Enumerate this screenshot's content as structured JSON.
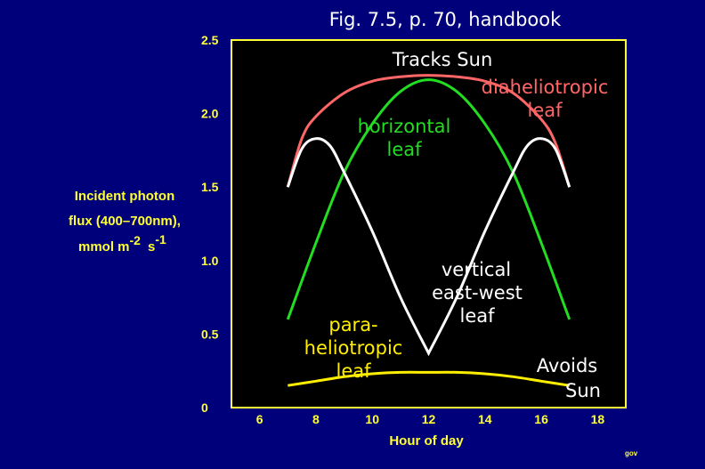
{
  "chart_data": {
    "type": "line",
    "title": "Fig. 7.5, p. 70, handbook",
    "xlabel": "Hour of day",
    "ylabel_lines": [
      "Incident photon",
      "flux (400–700nm),",
      "mmol m",
      "-2",
      "s",
      "-1"
    ],
    "xlim": [
      5,
      19
    ],
    "ylim": [
      0,
      2.5
    ],
    "xticks": [
      6,
      8,
      10,
      12,
      14,
      16,
      18
    ],
    "xtick_labels": [
      "6",
      "8",
      "10",
      "12",
      "14",
      "16",
      "18"
    ],
    "yticks": [
      0,
      0.5,
      1.0,
      1.5,
      2.0,
      2.5
    ],
    "ytick_labels": [
      "0",
      "0.5",
      "1.0",
      "1.5",
      "2.0",
      "2.5"
    ],
    "grid": false,
    "series": [
      {
        "key": "diaheliotropic",
        "color": "#ff6666",
        "x": [
          7,
          7.5,
          8,
          9,
          10,
          11,
          12,
          13,
          14,
          15,
          16,
          16.5,
          17
        ],
        "y": [
          1.5,
          1.83,
          1.98,
          2.14,
          2.22,
          2.25,
          2.26,
          2.25,
          2.22,
          2.14,
          1.96,
          1.8,
          1.5
        ]
      },
      {
        "key": "horizontal",
        "color": "#22dd22",
        "x": [
          7,
          8,
          9,
          10,
          11,
          12,
          13,
          14,
          15,
          16,
          17
        ],
        "y": [
          0.6,
          1.12,
          1.6,
          1.93,
          2.15,
          2.23,
          2.15,
          1.93,
          1.6,
          1.12,
          0.6
        ]
      },
      {
        "key": "vertical-east-west",
        "color": "#ffffff",
        "x": [
          7,
          7.5,
          8,
          8.5,
          9,
          10,
          11,
          12,
          13,
          14,
          15,
          15.5,
          16,
          16.5,
          17
        ],
        "y": [
          1.5,
          1.76,
          1.83,
          1.78,
          1.6,
          1.2,
          0.75,
          0.37,
          0.75,
          1.2,
          1.6,
          1.78,
          1.83,
          1.76,
          1.5
        ]
      },
      {
        "key": "paraheliotropic",
        "color": "#ffee00",
        "x": [
          7,
          8,
          9,
          10,
          11,
          12,
          13,
          14,
          15,
          16,
          17
        ],
        "y": [
          0.15,
          0.18,
          0.21,
          0.23,
          0.24,
          0.24,
          0.24,
          0.23,
          0.21,
          0.18,
          0.15
        ]
      }
    ],
    "annotations": [
      {
        "key": "tracks-sun",
        "text": "Tracks Sun",
        "color": "#ffffff"
      },
      {
        "key": "diaheliotropic-1",
        "text": "diaheliotropic",
        "color": "#ff6666"
      },
      {
        "key": "diaheliotropic-2",
        "text": "leaf",
        "color": "#ff6666"
      },
      {
        "key": "horizontal-1",
        "text": "horizontal",
        "color": "#22dd22"
      },
      {
        "key": "horizontal-2",
        "text": "leaf",
        "color": "#22dd22"
      },
      {
        "key": "vertical-1",
        "text": "vertical",
        "color": "#ffffff"
      },
      {
        "key": "vertical-2",
        "text": "east-west",
        "color": "#ffffff"
      },
      {
        "key": "vertical-3",
        "text": "leaf",
        "color": "#ffffff"
      },
      {
        "key": "para-1",
        "text": "para-",
        "color": "#ffee00"
      },
      {
        "key": "para-2",
        "text": "heliotropic",
        "color": "#ffee00"
      },
      {
        "key": "para-3",
        "text": "leaf",
        "color": "#ffee00"
      },
      {
        "key": "avoids-1",
        "text": "Avoids",
        "color": "#ffffff"
      },
      {
        "key": "avoids-2",
        "text": "Sun",
        "color": "#ffffff"
      }
    ],
    "credit": "gov",
    "colors": {
      "background": "#00007a",
      "plot_background": "#000000",
      "frame": "#ffff33",
      "text": "#ffff33"
    }
  }
}
